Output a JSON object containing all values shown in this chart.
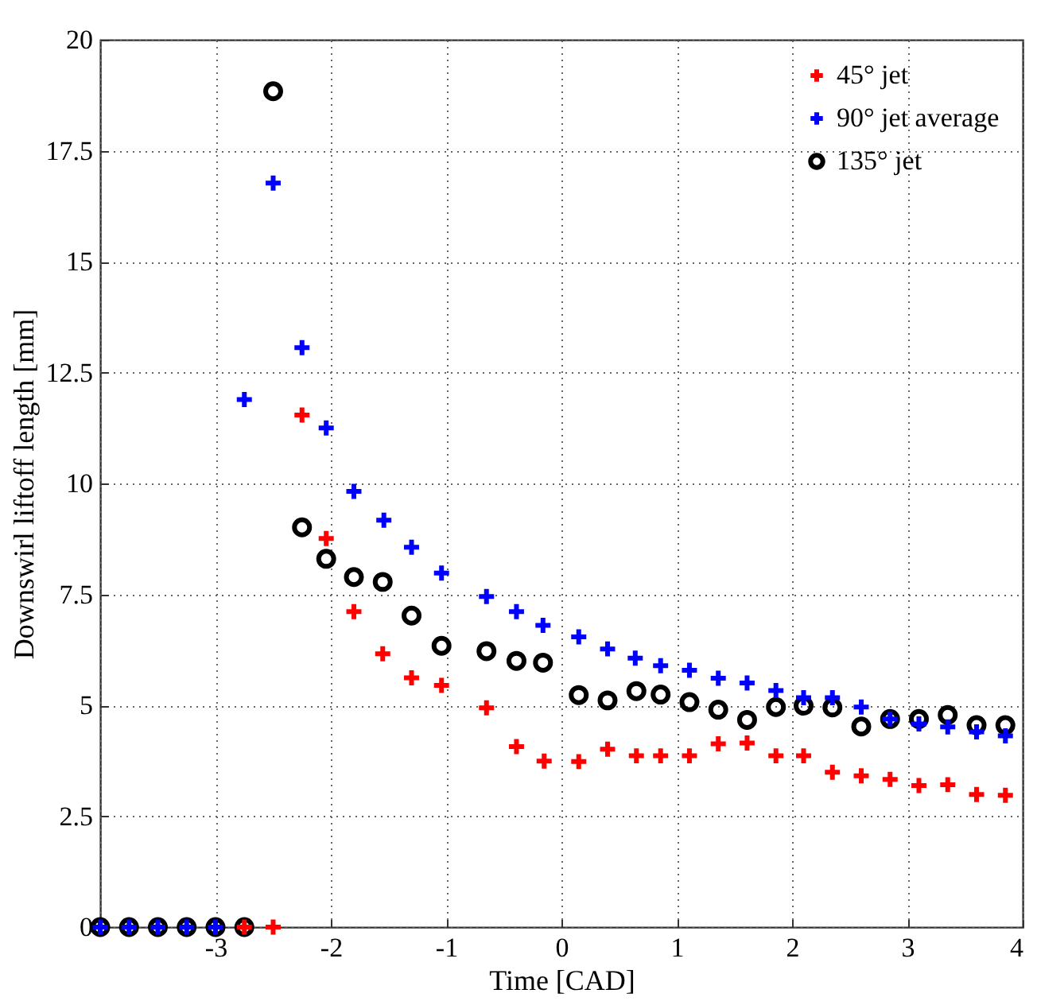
{
  "chart_data": {
    "type": "scatter",
    "xlabel": "Time [CAD]",
    "ylabel": "Downswirl liftoff length [mm]",
    "xlim": [
      -4,
      4
    ],
    "ylim": [
      0,
      20
    ],
    "xticks": [
      {
        "value": -4,
        "label": null
      },
      -3,
      -2,
      -1,
      0,
      1,
      2,
      3,
      4
    ],
    "yticks": [
      0,
      2.5,
      5,
      7.5,
      10,
      12.5,
      15,
      17.5,
      20
    ],
    "grid": true,
    "legend": "top right",
    "series": [
      {
        "name": "45° jet",
        "color": "#ff0000",
        "marker": "cross",
        "x": [
          -2.75,
          -2.5,
          -2.25,
          -2.04,
          -1.8,
          -1.55,
          -1.3,
          -1.04,
          -0.65,
          -0.39,
          -0.15,
          0.15,
          0.4,
          0.65,
          0.86,
          1.11,
          1.36,
          1.61,
          1.86,
          2.1,
          2.35,
          2.6,
          2.85,
          3.1,
          3.35,
          3.6,
          3.85
        ],
        "values": [
          0,
          0,
          11.54,
          8.76,
          7.11,
          6.16,
          5.62,
          5.45,
          4.94,
          4.07,
          3.74,
          3.73,
          4.01,
          3.86,
          3.86,
          3.86,
          4.13,
          4.15,
          3.86,
          3.86,
          3.49,
          3.41,
          3.33,
          3.19,
          3.21,
          2.99,
          2.97
        ]
      },
      {
        "name": "90° jet average",
        "color": "#0000ff",
        "marker": "cross",
        "x": [
          -4,
          -3.75,
          -3.5,
          -3.25,
          -3,
          -2.75,
          -2.5,
          -2.25,
          -2.04,
          -1.8,
          -1.54,
          -1.3,
          -1.04,
          -0.65,
          -0.39,
          -0.16,
          0.15,
          0.4,
          0.64,
          0.86,
          1.11,
          1.36,
          1.61,
          1.86,
          2.1,
          2.35,
          2.6,
          2.85,
          3.1,
          3.35,
          3.6,
          3.85
        ],
        "values": [
          0,
          0,
          0,
          0,
          0,
          11.89,
          16.77,
          13.06,
          11.25,
          9.82,
          9.17,
          8.56,
          7.98,
          7.45,
          7.11,
          6.8,
          6.54,
          6.27,
          6.06,
          5.89,
          5.79,
          5.61,
          5.5,
          5.33,
          5.17,
          5.17,
          4.96,
          4.69,
          4.58,
          4.51,
          4.4,
          4.31
        ]
      },
      {
        "name": "135° jet",
        "color": "#000000",
        "marker": "circle",
        "x": [
          -4,
          -3.75,
          -3.5,
          -3.25,
          -3,
          -2.75,
          -2.5,
          -2.25,
          -2.04,
          -1.8,
          -1.55,
          -1.3,
          -1.04,
          -0.65,
          -0.39,
          -0.16,
          0.15,
          0.4,
          0.65,
          0.86,
          1.11,
          1.36,
          1.61,
          1.86,
          2.1,
          2.35,
          2.6,
          2.85,
          3.1,
          3.35,
          3.6,
          3.85
        ],
        "values": [
          0,
          0,
          0,
          0,
          0,
          0,
          18.84,
          9.01,
          8.3,
          7.89,
          7.78,
          7.02,
          6.34,
          6.22,
          6,
          5.96,
          5.23,
          5.11,
          5.32,
          5.24,
          5.07,
          4.9,
          4.67,
          4.96,
          4.99,
          4.95,
          4.52,
          4.69,
          4.69,
          4.78,
          4.55,
          4.55
        ]
      }
    ]
  }
}
